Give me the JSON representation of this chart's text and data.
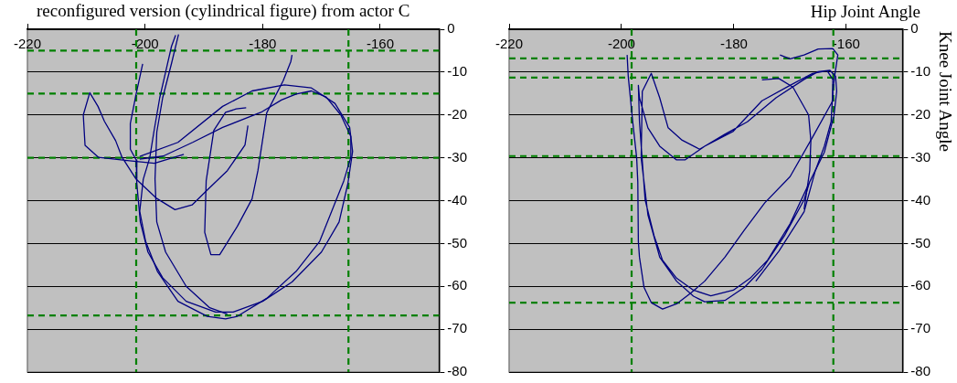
{
  "chart_data": [
    {
      "type": "line",
      "title": "reconfigured version (cylindrical figure) from actor C",
      "xlim": [
        -220,
        -150
      ],
      "ylim": [
        -80,
        0
      ],
      "xticks": [
        -220,
        -200,
        -180,
        -160
      ],
      "yticks": [
        0,
        -10,
        -20,
        -30,
        -40,
        -50,
        -60,
        -70,
        -80
      ],
      "grid": "y",
      "marker": "none",
      "line_style": "solid",
      "ref_lines": [
        {
          "axis": "x",
          "value": -201.5,
          "color": "#008000",
          "line_style": "dashed"
        },
        {
          "axis": "x",
          "value": -165.4,
          "color": "#008000",
          "line_style": "dashed"
        },
        {
          "axis": "y",
          "value": -5,
          "color": "#008000",
          "line_style": "dashed"
        },
        {
          "axis": "y",
          "value": -15,
          "color": "#008000",
          "line_style": "dashed"
        },
        {
          "axis": "y",
          "value": -30,
          "color": "#008000",
          "line_style": "dashed"
        },
        {
          "axis": "y",
          "value": -66.8,
          "color": "#008000",
          "line_style": "dashed"
        }
      ],
      "series": [
        {
          "color": "#000080",
          "x": [
            -194.8,
            -195.5,
            -196.5,
            -197.5,
            -198.5,
            -199.2,
            -200.3,
            -200.9,
            -199.9,
            -197.9,
            -194.4,
            -189.4,
            -186.3,
            -184.3,
            -179.3,
            -174.3,
            -170.3,
            -166.2,
            -165,
            -165,
            -166.7,
            -169.2,
            -171.7,
            -174.3,
            -176.8,
            -180.3,
            -186.8,
            -191.9,
            -196.9,
            -200.9
          ],
          "values": [
            -1.4,
            -4,
            -10,
            -16,
            -24,
            -30,
            -35,
            -42.5,
            -49.5,
            -56.5,
            -63.5,
            -67,
            -67.6,
            -67,
            -62.8,
            -56.5,
            -49.5,
            -35.4,
            -29.9,
            -25,
            -20,
            -15.8,
            -14.4,
            -15.1,
            -16.5,
            -19.4,
            -22.9,
            -26.4,
            -29.6,
            -30.3
          ]
        },
        {
          "color": "#000080",
          "x": [
            -200.4,
            -201.5,
            -202.5,
            -202.5,
            -201.5,
            -201.4,
            -200.8,
            -199.5,
            -197,
            -193,
            -188,
            -185,
            -180,
            -175,
            -170,
            -167,
            -165.5,
            -164.7,
            -165.2,
            -167.7,
            -171.7,
            -176.3,
            -181.8,
            -186.8,
            -194.4,
            -200.9
          ],
          "values": [
            -8.1,
            -15,
            -22,
            -28,
            -30.5,
            -36,
            -45,
            -52,
            -58,
            -63.5,
            -66,
            -66,
            -63.5,
            -59,
            -52,
            -45,
            -36,
            -28.5,
            -22.9,
            -17.3,
            -13.7,
            -13,
            -14.4,
            -18,
            -26.4,
            -29.7
          ]
        },
        {
          "color": "#000080",
          "x": [
            -182.8,
            -184.5,
            -186.3,
            -188.3,
            -189.6,
            -189.85,
            -188.8,
            -187.3,
            -184.3,
            -181.8,
            -180.8,
            -179.3,
            -176.5,
            -175.2,
            -175
          ],
          "values": [
            -18.3,
            -18.6,
            -19.4,
            -23.6,
            -35.4,
            -47.4,
            -52.6,
            -52.6,
            -46,
            -39.6,
            -33,
            -19.5,
            -12,
            -7.5,
            -6
          ]
        },
        {
          "color": "#000080",
          "x": [
            -193.4,
            -198.4,
            -203.4,
            -207.9,
            -210.2,
            -210.5,
            -209.4,
            -208,
            -206.9,
            -205,
            -203.9,
            -201.5,
            -198,
            -194.9,
            -192,
            -189.4,
            -186,
            -183,
            -182.5
          ],
          "values": [
            -29.2,
            -31.3,
            -30.6,
            -29.9,
            -27.1,
            -20,
            -14.8,
            -18,
            -21.5,
            -26,
            -29.9,
            -35,
            -39.5,
            -42.1,
            -41,
            -37.5,
            -33,
            -27,
            -22.5
          ]
        },
        {
          "color": "#000080",
          "x": [
            -194.3,
            -195.5,
            -197,
            -198,
            -198.3,
            -198,
            -196.5,
            -193,
            -189,
            -186
          ],
          "values": [
            -1.2,
            -8,
            -16,
            -24,
            -35,
            -45,
            -52,
            -60,
            -65,
            -66.5
          ]
        }
      ]
    },
    {
      "type": "line",
      "xlabel": "Hip Joint Angle",
      "ylabel": "Knee Joint Angle",
      "xlim": [
        -220,
        -150
      ],
      "ylim": [
        -80,
        0
      ],
      "xticks": [
        -220,
        -200,
        -180,
        -160
      ],
      "yticks": [
        0,
        -10,
        -20,
        -30,
        -40,
        -50,
        -60,
        -70,
        -80
      ],
      "grid": "y",
      "marker": "none",
      "line_style": "solid",
      "ref_lines": [
        {
          "axis": "x",
          "value": -198.2,
          "color": "#008000",
          "line_style": "dashed"
        },
        {
          "axis": "x",
          "value": -162.3,
          "color": "#008000",
          "line_style": "dashed"
        },
        {
          "axis": "y",
          "value": -6.8,
          "color": "#008000",
          "line_style": "dashed"
        },
        {
          "axis": "y",
          "value": -11.3,
          "color": "#008000",
          "line_style": "dashed"
        },
        {
          "axis": "y",
          "value": -29.6,
          "color": "#008000",
          "line_style": "dashed"
        },
        {
          "axis": "y",
          "value": -63.8,
          "color": "#008000",
          "line_style": "dashed"
        }
      ],
      "series": [
        {
          "color": "#000080",
          "x": [
            -171.8,
            -170,
            -167.5,
            -165,
            -162.4,
            -161.5,
            -162,
            -162.4,
            -162.7,
            -163.9,
            -165.5,
            -167.5,
            -172,
            -176.1
          ],
          "values": [
            -6,
            -6.9,
            -6,
            -4.6,
            -4.5,
            -6,
            -10.3,
            -14.5,
            -21.6,
            -27.3,
            -33,
            -42.6,
            -51.8,
            -58.8
          ]
        },
        {
          "color": "#000080",
          "x": [
            -199,
            -198.8,
            -198,
            -197.3,
            -197.1,
            -197,
            -196.8,
            -196,
            -194.7,
            -192.7,
            -190.2,
            -187.7,
            -185.2,
            -181.6,
            -178.1,
            -174.5,
            -170,
            -166,
            -162.4,
            -162.4,
            -163.4,
            -166,
            -170,
            -175,
            -180.1,
            -185.2,
            -188.7,
            -190.2,
            -193.2,
            -195.3,
            -196.8,
            -197,
            -196.8,
            -195.8,
            -194.2,
            -192.7,
            -190.2,
            -187.2,
            -184.1,
            -180.1,
            -177.1,
            -174,
            -170,
            -166.5,
            -163.9,
            -162.2,
            -161.7,
            -161.9,
            -162.9,
            -165,
            -167.5,
            -172.5,
            -177.6,
            -181.6,
            -186.1,
            -189.2,
            -191.7,
            -193.2,
            -194.7,
            -196.3,
            -196.5,
            -195.3,
            -193.2,
            -190.2,
            -187.2,
            -185.2,
            -181.6,
            -178.1,
            -175,
            -171,
            -167.5,
            -166.5
          ],
          "values": [
            -6,
            -11,
            -21.6,
            -30,
            -35.6,
            -49.6,
            -53.2,
            -60.2,
            -63.8,
            -65.3,
            -64.1,
            -61.6,
            -58.8,
            -53.2,
            -46.8,
            -40.5,
            -34.4,
            -25.2,
            -16.7,
            -11.7,
            -9.7,
            -10.3,
            -13.1,
            -16.7,
            -23.8,
            -27.3,
            -30.5,
            -30.5,
            -27.3,
            -23,
            -16,
            -13.1,
            -21.6,
            -39.8,
            -48.2,
            -53.9,
            -58.1,
            -60.9,
            -62.2,
            -60.9,
            -58.1,
            -53.9,
            -45.4,
            -35.6,
            -28.7,
            -20.2,
            -14.5,
            -11,
            -9.6,
            -9.9,
            -11.7,
            -16,
            -21.6,
            -24.5,
            -28,
            -25.9,
            -23,
            -16,
            -10.3,
            -14.5,
            -30,
            -43.3,
            -53.2,
            -58.8,
            -62.3,
            -63.6,
            -63.3,
            -60.2,
            -56,
            -48.2,
            -39.8,
            -35.6
          ]
        },
        {
          "color": "#000080",
          "x": [
            -175,
            -172,
            -169.5,
            -166.7,
            -166.3,
            -166.5,
            -167.5
          ],
          "values": [
            -11.8,
            -11.5,
            -13.5,
            -20,
            -26,
            -33,
            -42
          ]
        }
      ]
    }
  ]
}
